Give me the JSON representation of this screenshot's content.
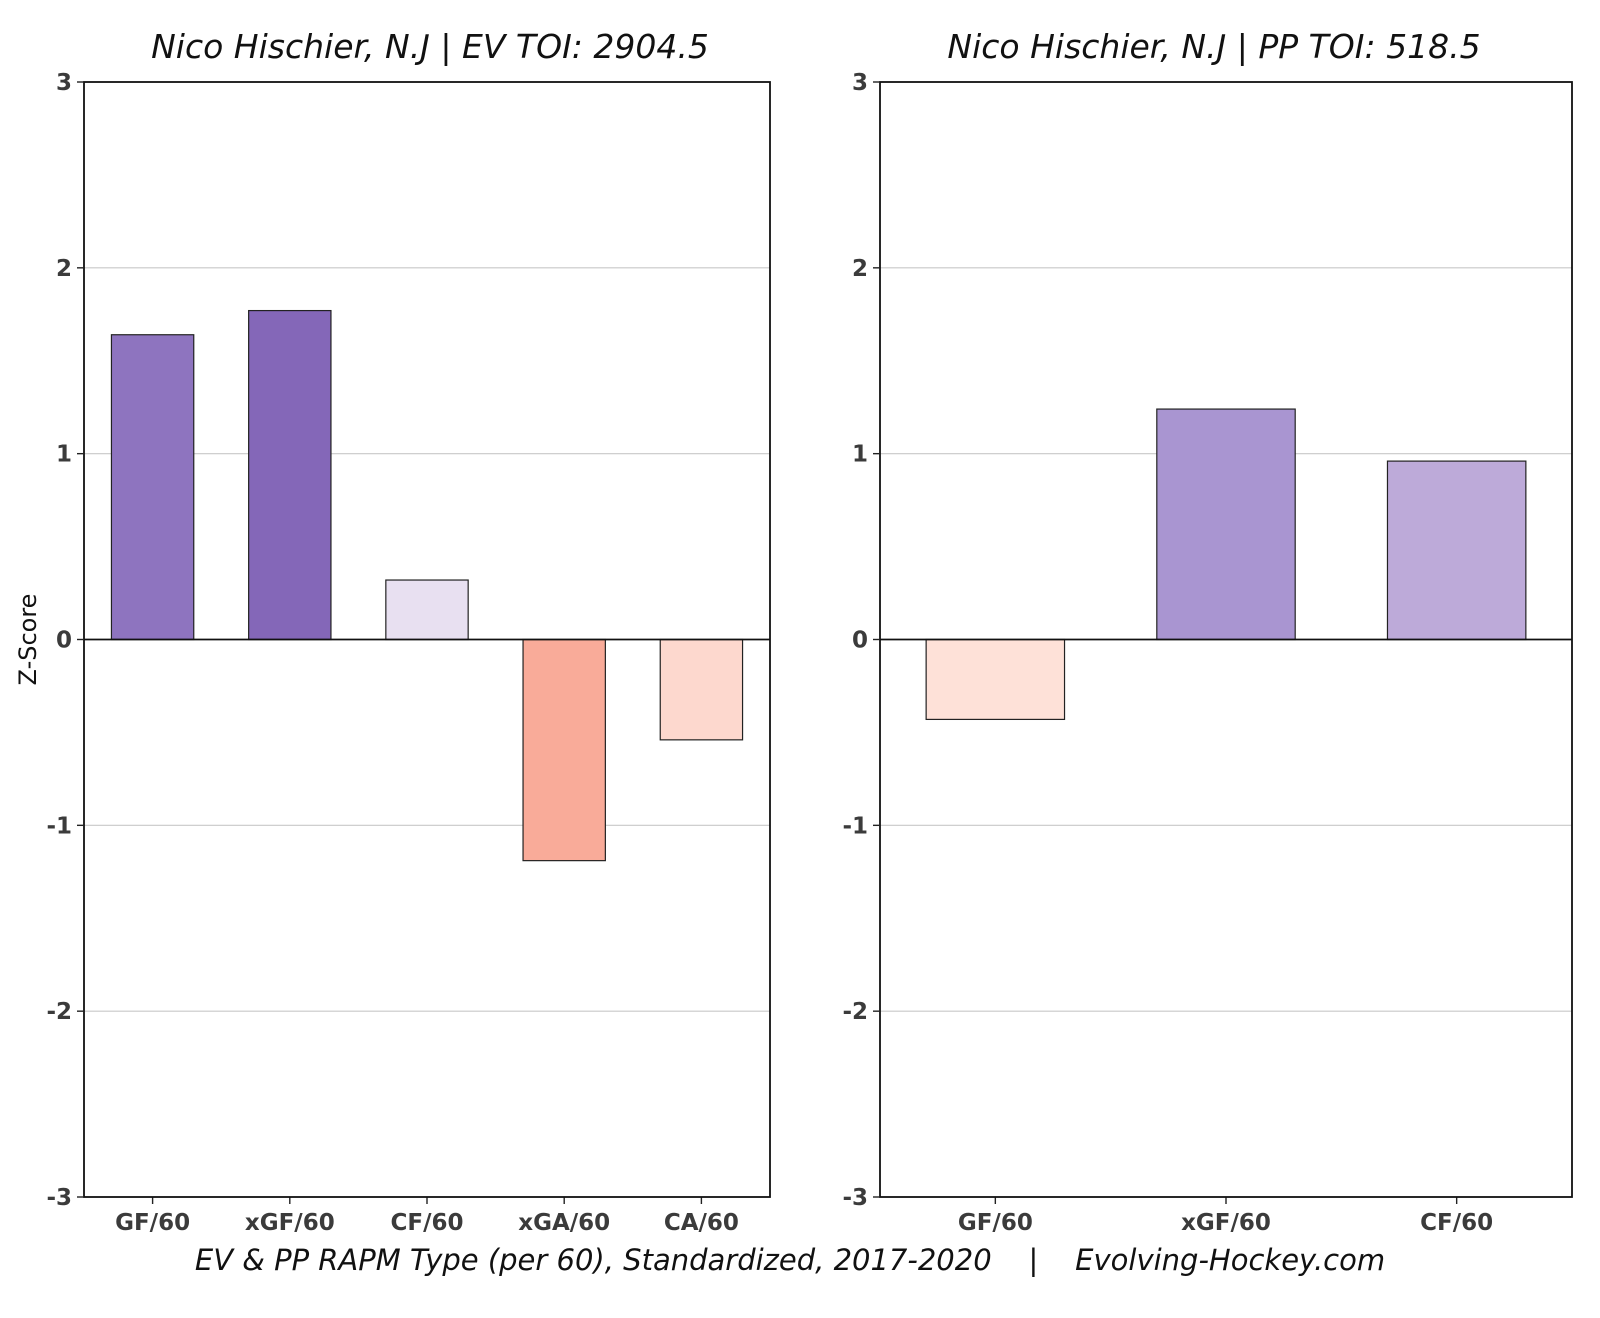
{
  "caption": "EV & PP RAPM Type (per 60), Standardized, 2017-2020    |    Evolving-Hockey.com",
  "chart_data": [
    {
      "type": "bar",
      "title": "Nico Hischier, N.J  |  EV TOI: 2904.5",
      "ylabel": "Z-Score",
      "xlabel": "",
      "ylim": [
        -3,
        3
      ],
      "yticks": [
        -3,
        -2,
        -1,
        0,
        1,
        2,
        3
      ],
      "grid": "horizontal",
      "categories": [
        "GF/60",
        "xGF/60",
        "CF/60",
        "xGA/60",
        "CA/60"
      ],
      "values": [
        1.64,
        1.77,
        0.32,
        -1.19,
        -0.54
      ],
      "colors": [
        "#8e74bf",
        "#8467b8",
        "#e8e0f1",
        "#f9ab99",
        "#fdd8ce"
      ]
    },
    {
      "type": "bar",
      "title": "Nico Hischier, N.J  |  PP TOI: 518.5",
      "ylabel": "",
      "xlabel": "",
      "ylim": [
        -3,
        3
      ],
      "yticks": [
        -3,
        -2,
        -1,
        0,
        1,
        2,
        3
      ],
      "grid": "horizontal",
      "categories": [
        "GF/60",
        "xGF/60",
        "CF/60"
      ],
      "values": [
        -0.43,
        1.24,
        0.96
      ],
      "colors": [
        "#fee1d8",
        "#a995d1",
        "#bdaad9"
      ]
    }
  ]
}
